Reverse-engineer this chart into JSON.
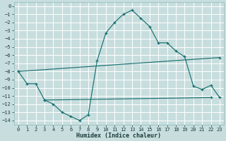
{
  "xlabel": "Humidex (Indice chaleur)",
  "bg_color": "#c8dede",
  "grid_color": "#ffffff",
  "line_color": "#1a7070",
  "xlim": [
    -0.5,
    23.5
  ],
  "ylim": [
    -14.5,
    0.5
  ],
  "xticks": [
    0,
    1,
    2,
    3,
    4,
    5,
    6,
    7,
    8,
    9,
    10,
    11,
    12,
    13,
    14,
    15,
    16,
    17,
    18,
    19,
    20,
    21,
    22,
    23
  ],
  "yticks": [
    0,
    -1,
    -2,
    -3,
    -4,
    -5,
    -6,
    -7,
    -8,
    -9,
    -10,
    -11,
    -12,
    -13,
    -14
  ],
  "line1_x": [
    0,
    1,
    2,
    3,
    4,
    5,
    6,
    7,
    8,
    9,
    10,
    11,
    12,
    13,
    14,
    15,
    16,
    17,
    18,
    19,
    20,
    21,
    22,
    23
  ],
  "line1_y": [
    -8.0,
    -9.5,
    -9.5,
    -11.5,
    -12.0,
    -13.0,
    -13.5,
    -14.0,
    -13.3,
    -6.7,
    -3.3,
    -2.0,
    -1.0,
    -0.5,
    -1.5,
    -2.5,
    -4.5,
    -4.5,
    -5.5,
    -6.2,
    -9.8,
    -10.2,
    -9.7,
    -11.2
  ],
  "line2_x": [
    0,
    23
  ],
  "line2_y": [
    -8.0,
    -6.3
  ],
  "line3_x": [
    3,
    22
  ],
  "line3_y": [
    -11.5,
    -11.2
  ]
}
